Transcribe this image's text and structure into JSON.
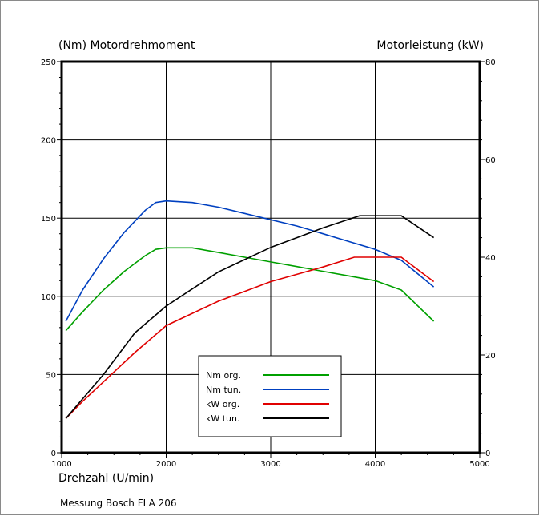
{
  "chart_data": {
    "type": "line",
    "left_axis_title": "(Nm)  Motordrehmoment",
    "right_axis_title": "Motorleistung  (kW)",
    "xlabel": "Drehzahl  (U/min)",
    "footer": "Messung Bosch FLA 206",
    "xlim": [
      1000,
      5000
    ],
    "ylim_left": [
      0,
      250
    ],
    "ylim_right": [
      0,
      80
    ],
    "x_ticks": [
      "1000",
      "2000",
      "3000",
      "4000",
      "5000"
    ],
    "y_left_ticks": [
      "0",
      "50",
      "100",
      "150",
      "200",
      "250"
    ],
    "y_right_ticks": [
      "0",
      "20",
      "40",
      "60",
      "80"
    ],
    "grid": true,
    "legend_position": "bottom-center",
    "series": [
      {
        "name": "Nm org.",
        "axis": "left",
        "color": "#00a000",
        "x": [
          1040,
          1200,
          1400,
          1600,
          1800,
          1900,
          2000,
          2250,
          2500,
          2750,
          3000,
          3250,
          3500,
          3750,
          4000,
          4250,
          4560
        ],
        "y": [
          78,
          90,
          104,
          116,
          126,
          130,
          131,
          131,
          128,
          125,
          122,
          119,
          116,
          113,
          110,
          104,
          84
        ]
      },
      {
        "name": "Nm tun.",
        "axis": "left",
        "color": "#0040c0",
        "x": [
          1040,
          1200,
          1400,
          1600,
          1800,
          1900,
          2000,
          2250,
          2500,
          2750,
          3000,
          3250,
          3500,
          3750,
          4000,
          4250,
          4560
        ],
        "y": [
          84,
          104,
          124,
          141,
          155,
          160,
          161,
          160,
          157,
          153,
          149,
          145,
          140,
          135,
          130,
          123,
          106
        ]
      },
      {
        "name": "kW org.",
        "axis": "right",
        "color": "#e00000",
        "x": [
          1040,
          1200,
          1400,
          1700,
          2000,
          2250,
          2500,
          2750,
          3000,
          3250,
          3500,
          3800,
          4250,
          4560
        ],
        "y": [
          7,
          10.5,
          14.5,
          20.5,
          26,
          28.5,
          31,
          33,
          35,
          36.5,
          38,
          40,
          40,
          35
        ]
      },
      {
        "name": "kW tun.",
        "axis": "right",
        "color": "#000000",
        "x": [
          1040,
          1200,
          1400,
          1700,
          2000,
          2250,
          2500,
          2750,
          3000,
          3250,
          3500,
          3850,
          4250,
          4560
        ],
        "y": [
          7,
          11,
          16,
          24.5,
          30,
          33.5,
          37,
          39.5,
          42,
          44,
          46,
          48.5,
          48.5,
          44
        ]
      }
    ]
  }
}
